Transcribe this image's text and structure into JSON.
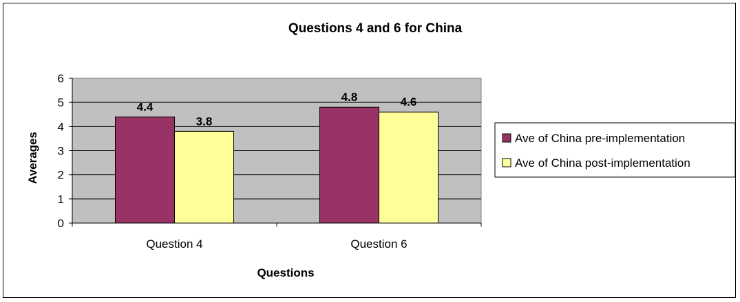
{
  "chart_data": {
    "type": "bar",
    "title": "Questions 4 and 6 for China",
    "xlabel": "Questions",
    "ylabel": "Averages",
    "categories": [
      "Question 4",
      "Question 6"
    ],
    "series": [
      {
        "name": "Ave of China pre-implementation",
        "values": [
          4.4,
          4.8
        ],
        "color": "#993366"
      },
      {
        "name": "Ave of China post-implementation",
        "values": [
          3.8,
          4.6
        ],
        "color": "#FFFF99"
      }
    ],
    "ylim": [
      0,
      6
    ],
    "yticks": [
      "0",
      "1",
      "2",
      "3",
      "4",
      "5",
      "6"
    ],
    "data_labels": [
      "4.4",
      "3.8",
      "4.8",
      "4.6"
    ],
    "grid": true,
    "legend": "right",
    "plot_background": "#C0C0C0"
  }
}
